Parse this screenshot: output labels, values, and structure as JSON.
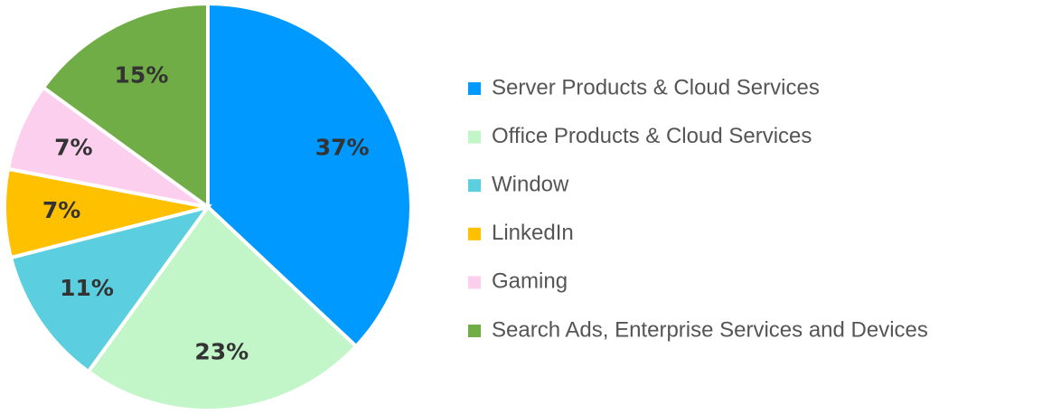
{
  "chart_data": {
    "type": "pie",
    "categories": [
      "Server Products & Cloud Services",
      "Office Products & Cloud Services",
      "Window",
      "LinkedIn",
      "Gaming",
      "Search Ads, Enterprise Services and Devices"
    ],
    "values": [
      37,
      23,
      11,
      7,
      7,
      15
    ],
    "value_labels": [
      "37%",
      "23%",
      "11%",
      "7%",
      "7%",
      "15%"
    ],
    "colors": [
      "#0099ff",
      "#c2f5c8",
      "#5bcfdf",
      "#ffc000",
      "#fccfee",
      "#70ad47"
    ],
    "legend": "right"
  }
}
